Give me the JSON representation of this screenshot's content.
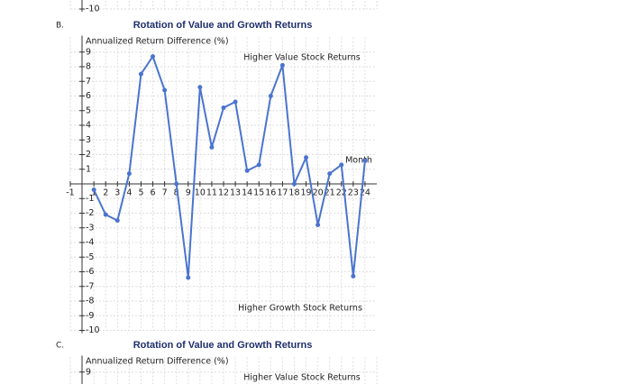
{
  "chart_data": [
    {
      "type": "line",
      "ylim": [
        -10,
        10
      ],
      "yticks": [
        -10
      ]
    },
    {
      "type": "line",
      "label": "B.",
      "title": "Rotation of Value and Growth Returns",
      "y_label": "Annualized Return Difference (%)",
      "x_label": "Month",
      "annotations": [
        "Higher  Value  Stock  Returns",
        "Higher  Growth  Stock  Returns"
      ],
      "x": [
        1,
        2,
        3,
        4,
        5,
        6,
        7,
        8,
        9,
        10,
        11,
        12,
        13,
        14,
        15,
        16,
        17,
        18,
        19,
        20,
        21,
        22,
        23,
        24
      ],
      "series": [
        {
          "color": "#4a74d0",
          "values": [
            -0.4,
            -2.1,
            -2.5,
            0.7,
            7.5,
            8.7,
            6.4,
            0,
            -6.4,
            6.6,
            2.5,
            5.2,
            5.6,
            0.9,
            1.3,
            6,
            8.1,
            0,
            1.8,
            -2.8,
            0.7,
            1.3,
            -6.3,
            1.6
          ]
        }
      ],
      "xlim": [
        -1,
        25
      ],
      "ylim": [
        -10,
        10
      ],
      "xticks": [
        -1,
        1,
        2,
        3,
        4,
        5,
        6,
        7,
        8,
        9,
        10,
        11,
        12,
        13,
        14,
        15,
        16,
        17,
        18,
        19,
        20,
        21,
        22,
        23,
        24
      ],
      "yticks": [
        -10,
        -9,
        -8,
        -7,
        -6,
        -5,
        -4,
        -3,
        -2,
        -1,
        1,
        2,
        3,
        4,
        5,
        6,
        7,
        8,
        9
      ],
      "grid": true
    },
    {
      "type": "line",
      "label": "C.",
      "title": "Rotation of Value and Growth Returns",
      "y_label": "Annualized Return Difference (%)",
      "annotations": [
        "Higher  Value  Stock  Returns"
      ],
      "ylim": [
        -10,
        10
      ],
      "yticks": [
        9
      ]
    }
  ]
}
